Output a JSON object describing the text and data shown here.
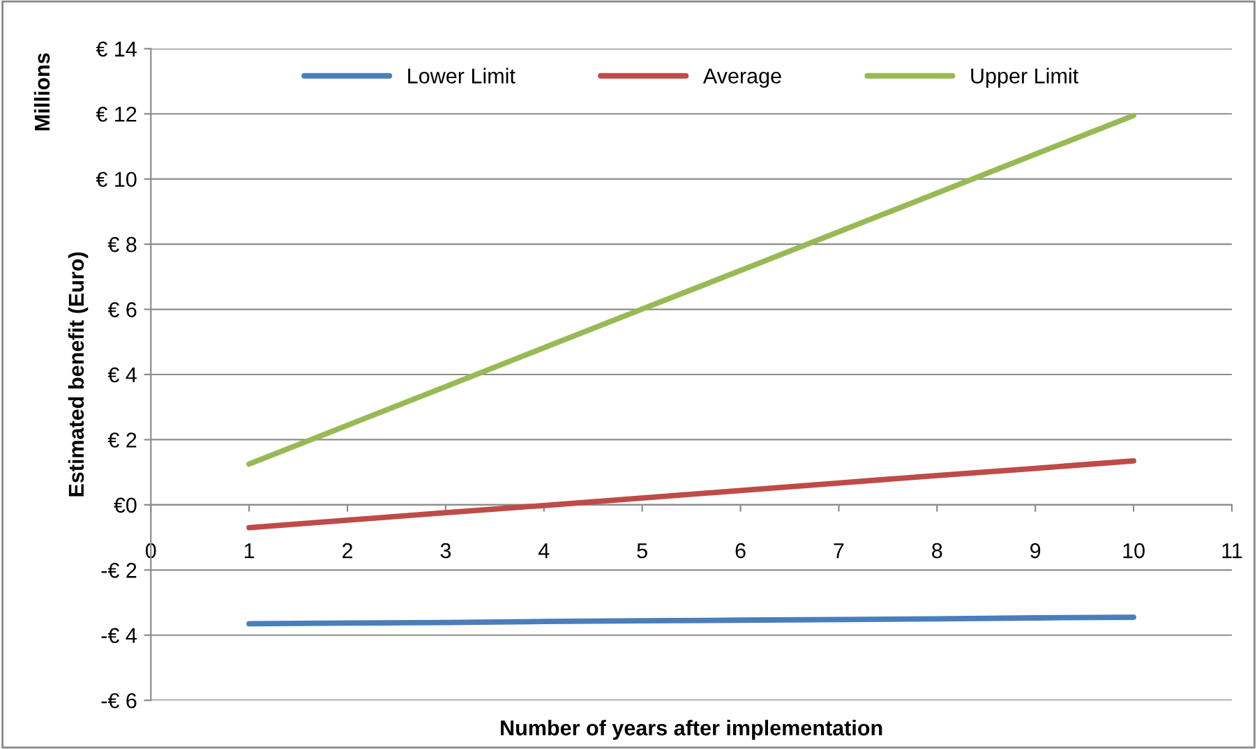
{
  "chart_data": {
    "type": "line",
    "xlabel": "Number of years after implementation",
    "ylabel": "Estimated benefit (Euro)",
    "annotations": [
      "Millions"
    ],
    "x": [
      1,
      2,
      3,
      4,
      5,
      6,
      7,
      8,
      9,
      10
    ],
    "series": [
      {
        "name": "Lower Limit",
        "color": "#4a7ebb",
        "values": [
          -3.65,
          -3.63,
          -3.61,
          -3.58,
          -3.56,
          -3.54,
          -3.52,
          -3.5,
          -3.47,
          -3.45
        ]
      },
      {
        "name": "Average",
        "color": "#be4b48",
        "values": [
          -0.7,
          -0.47,
          -0.24,
          -0.02,
          0.21,
          0.44,
          0.67,
          0.9,
          1.12,
          1.35
        ]
      },
      {
        "name": "Upper Limit",
        "color": "#98b954",
        "values": [
          1.25,
          2.44,
          3.63,
          4.82,
          6.01,
          7.19,
          8.38,
          9.57,
          10.76,
          11.95
        ]
      }
    ],
    "xlim": [
      0,
      11
    ],
    "xticks": [
      0,
      1,
      2,
      3,
      4,
      5,
      6,
      7,
      8,
      9,
      10,
      11
    ],
    "ylim": [
      -6,
      14
    ],
    "yticks": [
      {
        "value": 14,
        "label": "€ 14"
      },
      {
        "value": 12,
        "label": "€ 12"
      },
      {
        "value": 10,
        "label": "€ 10"
      },
      {
        "value": 8,
        "label": "€ 8"
      },
      {
        "value": 6,
        "label": "€ 6"
      },
      {
        "value": 4,
        "label": "€ 4"
      },
      {
        "value": 2,
        "label": "€ 2"
      },
      {
        "value": 0,
        "label": "€0"
      },
      {
        "value": -2,
        "label": "-€ 2"
      },
      {
        "value": -4,
        "label": "-€ 4"
      },
      {
        "value": -6,
        "label": "-€ 6"
      }
    ],
    "grid": "y",
    "legend": "top",
    "marker": "none",
    "line_style": "solid"
  }
}
